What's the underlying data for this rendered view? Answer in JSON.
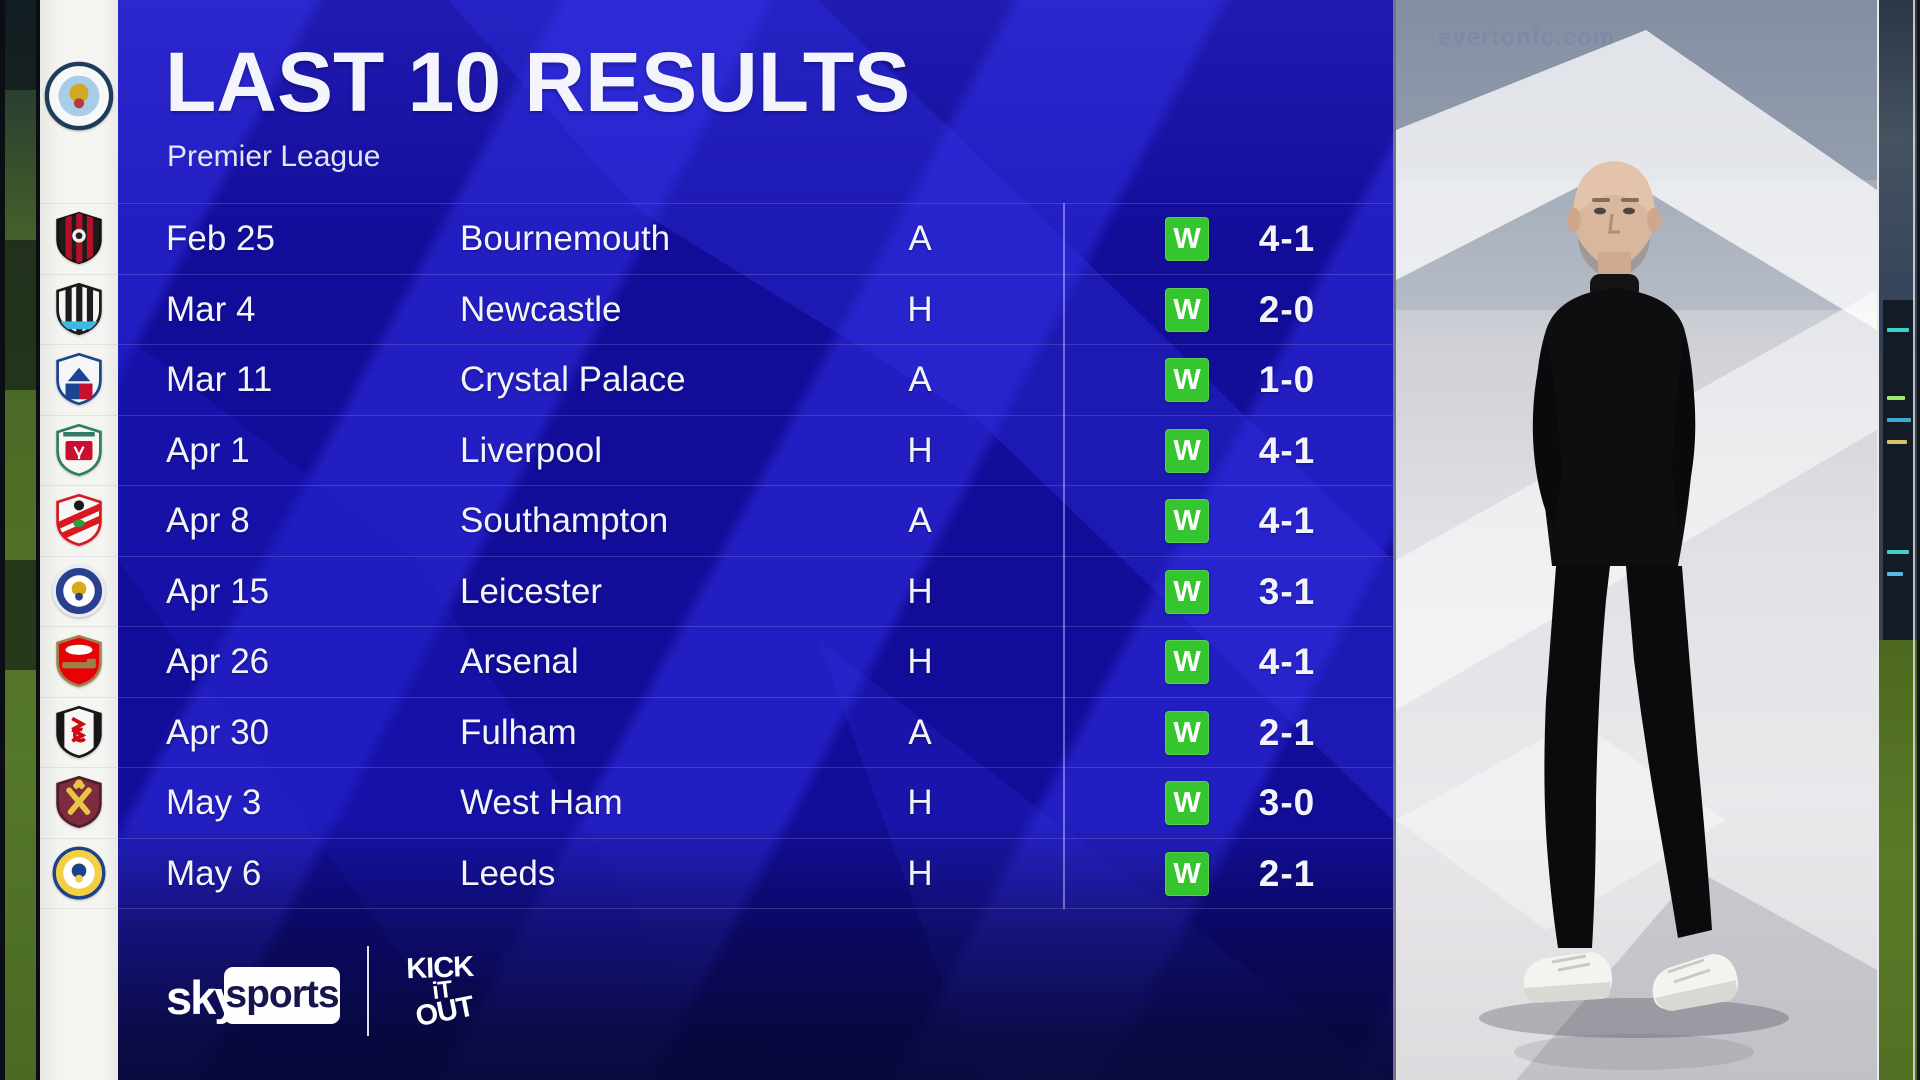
{
  "header": {
    "title": "LAST 10 RESULTS",
    "subtitle": "Premier League"
  },
  "club": {
    "name": "Manchester City",
    "badge": {
      "id": "man-city",
      "shape": "circle",
      "ring": "#f5f7f9",
      "border": "#1e3c5a",
      "inner": "#a7cde8",
      "emblem": "#d4a727",
      "emblem2": "#b43c3c"
    }
  },
  "table": {
    "results": [
      {
        "date": "Feb 25",
        "opponent": "Bournemouth",
        "venue": "A",
        "result": "W",
        "score": "4-1",
        "badge": {
          "id": "bournemouth",
          "shape": "shield",
          "style": "stripes",
          "base": "#1d1c1a",
          "border": "#15100e",
          "detail": "#b51029",
          "dot": "#f2f2f2"
        }
      },
      {
        "date": "Mar 4",
        "opponent": "Newcastle",
        "venue": "H",
        "result": "W",
        "score": "2-0",
        "badge": {
          "id": "newcastle",
          "shape": "shield",
          "style": "stripes",
          "base": "#f5f5f3",
          "border": "#1a1a1a",
          "detail": "#1c1c1c",
          "band": "#3db7e4"
        }
      },
      {
        "date": "Mar 11",
        "opponent": "Crystal Palace",
        "venue": "A",
        "result": "W",
        "score": "1-0",
        "badge": {
          "id": "crystal-palace",
          "shape": "shield",
          "style": "split",
          "base": "#f4f6fa",
          "border": "#1b458f",
          "detail": "#1b458f",
          "detail2": "#c4122e"
        }
      },
      {
        "date": "Apr 1",
        "opponent": "Liverpool",
        "venue": "H",
        "result": "W",
        "score": "4-1",
        "badge": {
          "id": "liverpool",
          "shape": "shield",
          "style": "panel",
          "base": "#f8f6f0",
          "border": "#2e7d64",
          "detail": "#c8102e",
          "detail2": "#2e7d64"
        }
      },
      {
        "date": "Apr 8",
        "opponent": "Southampton",
        "venue": "A",
        "result": "W",
        "score": "4-1",
        "badge": {
          "id": "southampton",
          "shape": "shield",
          "style": "sash",
          "base": "#f8f8f6",
          "border": "#d71920",
          "detail": "#d71920",
          "dot": "#1a1a1a",
          "detail2": "#2f9a3e"
        }
      },
      {
        "date": "Apr 15",
        "opponent": "Leicester",
        "venue": "H",
        "result": "W",
        "score": "3-1",
        "badge": {
          "id": "leicester",
          "shape": "circle",
          "ring": "#2b3f8f",
          "border": "#e7ebf2",
          "inner": "#ffffff",
          "emblem": "#d9a916",
          "emblem2": "#2b3f8f"
        }
      },
      {
        "date": "Apr 26",
        "opponent": "Arsenal",
        "venue": "H",
        "result": "W",
        "score": "4-1",
        "badge": {
          "id": "arsenal",
          "shape": "shield",
          "style": "cannon",
          "base": "#e8randomness0107",
          "baseFix": "#e80107",
          "border": "#9c824a",
          "detail": "#9c824a",
          "detail2": "#ffffff"
        }
      },
      {
        "date": "Apr 30",
        "opponent": "Fulham",
        "venue": "A",
        "result": "W",
        "score": "2-1",
        "badge": {
          "id": "fulham",
          "shape": "shield",
          "style": "sides",
          "base": "#f7f7f5",
          "border": "#171717",
          "detail": "#cc0a11",
          "detail2": "#171717"
        }
      },
      {
        "date": "May 3",
        "opponent": "West Ham",
        "venue": "H",
        "result": "W",
        "score": "3-0",
        "badge": {
          "id": "west-ham",
          "shape": "shield",
          "style": "hammers",
          "base": "#7d2c3d",
          "border": "#511c29",
          "detail": "#e8c547"
        }
      },
      {
        "date": "May 6",
        "opponent": "Leeds",
        "venue": "H",
        "result": "W",
        "score": "2-1",
        "badge": {
          "id": "leeds",
          "shape": "circle",
          "ring": "#f3cf45",
          "border": "#1d428a",
          "inner": "#ffffff",
          "emblem": "#1d428a",
          "emblem2": "#f3cf45"
        }
      }
    ]
  },
  "footer": {
    "sky_word": "sky",
    "sports_word": "sports",
    "kick_it_out_lines": [
      "KICK",
      "iT",
      "OUT"
    ]
  },
  "photo_panel": {
    "watermark": "evertonfc.com"
  },
  "colors": {
    "win_green": "#35c52f",
    "panel_blue": "#150fa0",
    "panel_blue_bright": "#2e2adc",
    "panel_blue_dark": "#100c94",
    "footer_navy": "#16164c",
    "strip_white": "#f4f4f1"
  }
}
